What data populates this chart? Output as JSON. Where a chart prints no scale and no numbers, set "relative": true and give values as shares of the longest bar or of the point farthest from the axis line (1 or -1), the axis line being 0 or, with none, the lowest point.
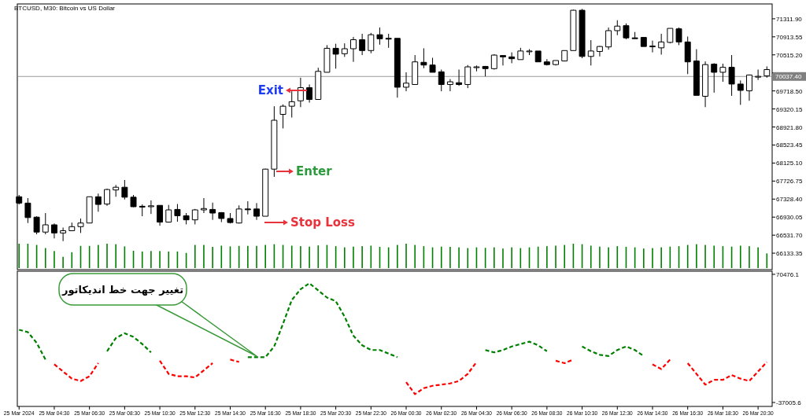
{
  "chart_data": [
    {
      "type": "candlestick",
      "title": "BTCUSD, M30: Bitcoin vs US Dollar",
      "x": [
        "2024-03-25T02:30",
        "2024-03-25T03:00",
        "2024-03-25T03:30",
        "2024-03-25T04:00",
        "2024-03-25T04:30",
        "2024-03-25T05:00",
        "2024-03-25T05:30",
        "2024-03-25T06:00",
        "2024-03-25T06:30",
        "2024-03-25T07:00",
        "2024-03-25T07:30",
        "2024-03-25T08:00",
        "2024-03-25T08:30",
        "2024-03-25T09:00",
        "2024-03-25T09:30",
        "2024-03-25T10:00",
        "2024-03-25T10:30",
        "2024-03-25T11:00",
        "2024-03-25T11:30",
        "2024-03-25T12:00",
        "2024-03-25T12:30",
        "2024-03-25T13:00",
        "2024-03-25T13:30",
        "2024-03-25T14:00",
        "2024-03-25T14:30",
        "2024-03-25T15:00",
        "2024-03-25T15:30",
        "2024-03-25T16:00",
        "2024-03-25T16:30",
        "2024-03-25T17:00",
        "2024-03-25T17:30",
        "2024-03-25T18:00",
        "2024-03-25T18:30",
        "2024-03-25T19:00",
        "2024-03-25T19:30",
        "2024-03-25T20:00",
        "2024-03-25T20:30",
        "2024-03-25T21:00",
        "2024-03-25T21:30",
        "2024-03-25T22:00",
        "2024-03-25T22:30",
        "2024-03-25T23:00",
        "2024-03-25T23:30",
        "2024-03-26T00:00",
        "2024-03-26T00:30",
        "2024-03-26T01:00",
        "2024-03-26T01:30",
        "2024-03-26T02:00",
        "2024-03-26T02:30",
        "2024-03-26T03:00",
        "2024-03-26T03:30",
        "2024-03-26T04:00",
        "2024-03-26T04:30",
        "2024-03-26T05:00",
        "2024-03-26T05:30",
        "2024-03-26T06:00",
        "2024-03-26T06:30",
        "2024-03-26T07:00",
        "2024-03-26T07:30",
        "2024-03-26T08:00",
        "2024-03-26T08:30",
        "2024-03-26T09:00",
        "2024-03-26T09:30",
        "2024-03-26T10:00",
        "2024-03-26T10:30",
        "2024-03-26T11:00",
        "2024-03-26T11:30",
        "2024-03-26T12:00",
        "2024-03-26T12:30",
        "2024-03-26T13:00",
        "2024-03-26T13:30",
        "2024-03-26T14:00",
        "2024-03-26T14:30",
        "2024-03-26T15:00",
        "2024-03-26T15:30",
        "2024-03-26T16:00",
        "2024-03-26T16:30",
        "2024-03-26T17:00",
        "2024-03-26T17:30",
        "2024-03-26T18:00",
        "2024-03-26T18:30",
        "2024-03-26T19:00",
        "2024-03-26T19:30",
        "2024-03-26T20:00",
        "2024-03-26T20:30",
        "2024-03-26T21:00"
      ],
      "ohlc": [
        [
          67380,
          67420,
          67210,
          67240
        ],
        [
          67240,
          67350,
          66800,
          66920
        ],
        [
          66930,
          66950,
          66550,
          66600
        ],
        [
          66600,
          67020,
          66550,
          66760
        ],
        [
          66760,
          66790,
          66460,
          66580
        ],
        [
          66580,
          66700,
          66400,
          66630
        ],
        [
          66630,
          66810,
          66620,
          66720
        ],
        [
          66720,
          66900,
          66580,
          66800
        ],
        [
          66800,
          67380,
          66800,
          67380
        ],
        [
          67380,
          67450,
          67050,
          67210
        ],
        [
          67220,
          67560,
          67180,
          67540
        ],
        [
          67530,
          67640,
          67380,
          67590
        ],
        [
          67590,
          67750,
          67320,
          67370
        ],
        [
          67370,
          67420,
          67150,
          67160
        ],
        [
          67170,
          67210,
          66950,
          67160
        ],
        [
          67160,
          67300,
          67000,
          67180
        ],
        [
          67190,
          67190,
          66740,
          66820
        ],
        [
          66820,
          67200,
          66810,
          67090
        ],
        [
          67100,
          67220,
          66830,
          66960
        ],
        [
          66960,
          67020,
          66770,
          66870
        ],
        [
          66870,
          67110,
          66770,
          67090
        ],
        [
          67090,
          67350,
          67020,
          67120
        ],
        [
          67100,
          67250,
          66870,
          67020
        ],
        [
          67030,
          67040,
          66820,
          66900
        ],
        [
          66900,
          67020,
          66790,
          66810
        ],
        [
          66800,
          67190,
          66790,
          67110
        ],
        [
          67110,
          67280,
          66990,
          67100
        ],
        [
          67110,
          67240,
          66870,
          66950
        ],
        [
          66950,
          68000,
          66950,
          67990
        ],
        [
          67990,
          69380,
          67820,
          69070
        ],
        [
          69200,
          69420,
          68890,
          69380
        ],
        [
          69380,
          69710,
          69130,
          69480
        ],
        [
          69500,
          70010,
          69360,
          69790
        ],
        [
          69790,
          69860,
          69460,
          69530
        ],
        [
          69530,
          70230,
          69530,
          70150
        ],
        [
          70130,
          70730,
          70130,
          70660
        ],
        [
          70660,
          70760,
          70210,
          70530
        ],
        [
          70540,
          70770,
          70470,
          70650
        ],
        [
          70650,
          70910,
          70360,
          70850
        ],
        [
          70850,
          70980,
          70510,
          70610
        ],
        [
          70610,
          71000,
          70550,
          70960
        ],
        [
          70960,
          71120,
          70740,
          70870
        ],
        [
          70880,
          70980,
          70670,
          70870
        ],
        [
          70880,
          70880,
          69570,
          69800
        ],
        [
          69800,
          70130,
          69710,
          69890
        ],
        [
          69860,
          70510,
          69860,
          70360
        ],
        [
          70350,
          70660,
          70220,
          70290
        ],
        [
          70290,
          70450,
          70130,
          70130
        ],
        [
          70140,
          70190,
          69710,
          69860
        ],
        [
          69860,
          69980,
          69710,
          69920
        ],
        [
          69900,
          70190,
          69830,
          69860
        ],
        [
          69860,
          70290,
          69780,
          70250
        ],
        [
          70250,
          70280,
          70150,
          70250
        ],
        [
          70260,
          70270,
          70040,
          70210
        ],
        [
          70210,
          70530,
          70190,
          70510
        ],
        [
          70500,
          70500,
          70280,
          70470
        ],
        [
          70470,
          70570,
          70330,
          70430
        ],
        [
          70410,
          70670,
          70410,
          70600
        ],
        [
          70600,
          70640,
          70510,
          70600
        ],
        [
          70600,
          70600,
          70360,
          70360
        ],
        [
          70360,
          70420,
          70280,
          70300
        ],
        [
          70300,
          70390,
          70280,
          70390
        ],
        [
          70380,
          70610,
          70370,
          70610
        ],
        [
          70610,
          71510,
          70610,
          71500
        ],
        [
          71500,
          71530,
          70440,
          70480
        ],
        [
          70480,
          70840,
          70280,
          70600
        ],
        [
          70590,
          70710,
          70480,
          70700
        ],
        [
          70690,
          71120,
          70630,
          71050
        ],
        [
          71050,
          71280,
          70950,
          71150
        ],
        [
          71160,
          71210,
          70860,
          70890
        ],
        [
          70890,
          71020,
          70870,
          70880
        ],
        [
          70900,
          70900,
          70700,
          70700
        ],
        [
          70710,
          70830,
          70570,
          70710
        ],
        [
          70670,
          70980,
          70520,
          70800
        ],
        [
          70790,
          71100,
          70770,
          71100
        ],
        [
          71090,
          71120,
          70730,
          70800
        ],
        [
          70800,
          70920,
          70090,
          70360
        ],
        [
          70380,
          70640,
          69620,
          69620
        ],
        [
          69600,
          70370,
          69360,
          70300
        ],
        [
          70310,
          70330,
          69680,
          70130
        ],
        [
          70130,
          70320,
          69920,
          70240
        ],
        [
          70240,
          70510,
          69610,
          69870
        ],
        [
          69870,
          69950,
          69410,
          69730
        ],
        [
          69720,
          70080,
          69500,
          70070
        ],
        [
          70040,
          70190,
          69960,
          70040
        ],
        [
          70050,
          70260,
          70010,
          70190
        ]
      ],
      "xlim": [
        "2024-03-25T02:24",
        "2024-03-26T21:18"
      ],
      "ylim": [
        65770,
        71640
      ],
      "yticks": [
        {
          "value": 71311.9,
          "label": "71311.90"
        },
        {
          "value": 70913.55,
          "label": "70913.55"
        },
        {
          "value": 70515.2,
          "label": "70515.20"
        },
        {
          "value": 70116.85,
          "label": null
        },
        {
          "value": 69718.5,
          "label": "69718.50"
        },
        {
          "value": 69320.15,
          "label": "69320.15"
        },
        {
          "value": 68921.8,
          "label": "68921.80"
        },
        {
          "value": 68523.45,
          "label": "68523.45"
        },
        {
          "value": 68125.1,
          "label": "68125.10"
        },
        {
          "value": 67726.75,
          "label": "67726.75"
        },
        {
          "value": 67328.4,
          "label": "67328.40"
        },
        {
          "value": 66930.05,
          "label": "66930.05"
        },
        {
          "value": 66531.7,
          "label": "66531.70"
        },
        {
          "value": 66133.35,
          "label": "66133.35"
        }
      ],
      "tick_labels": "y",
      "ref_lines": [
        {
          "axis": "y",
          "value": 70037.4,
          "label": "70037.40",
          "color": "#808080"
        }
      ],
      "annotations": [
        "Exit",
        "Enter",
        "Stop Loss"
      ]
    },
    {
      "type": "bar",
      "relative": true,
      "color": "#008000",
      "tick_labels": false,
      "x": [
        "2024-03-25T02:30",
        "2024-03-25T03:00",
        "2024-03-25T03:30",
        "2024-03-25T04:00",
        "2024-03-25T04:30",
        "2024-03-25T05:00",
        "2024-03-25T05:30",
        "2024-03-25T06:00",
        "2024-03-25T06:30",
        "2024-03-25T07:00",
        "2024-03-25T07:30",
        "2024-03-25T08:00",
        "2024-03-25T08:30",
        "2024-03-25T09:00",
        "2024-03-25T09:30",
        "2024-03-25T10:00",
        "2024-03-25T10:30",
        "2024-03-25T11:00",
        "2024-03-25T11:30",
        "2024-03-25T12:00",
        "2024-03-25T12:30",
        "2024-03-25T13:00",
        "2024-03-25T13:30",
        "2024-03-25T14:00",
        "2024-03-25T14:30",
        "2024-03-25T15:00",
        "2024-03-25T15:30",
        "2024-03-25T16:00",
        "2024-03-25T16:30",
        "2024-03-25T17:00",
        "2024-03-25T17:30",
        "2024-03-25T18:00",
        "2024-03-25T18:30",
        "2024-03-25T19:00",
        "2024-03-25T19:30",
        "2024-03-25T20:00",
        "2024-03-25T20:30",
        "2024-03-25T21:00",
        "2024-03-25T21:30",
        "2024-03-25T22:00",
        "2024-03-25T22:30",
        "2024-03-25T23:00",
        "2024-03-25T23:30",
        "2024-03-26T00:00",
        "2024-03-26T00:30",
        "2024-03-26T01:00",
        "2024-03-26T01:30",
        "2024-03-26T02:00",
        "2024-03-26T02:30",
        "2024-03-26T03:00",
        "2024-03-26T03:30",
        "2024-03-26T04:00",
        "2024-03-26T04:30",
        "2024-03-26T05:00",
        "2024-03-26T05:30",
        "2024-03-26T06:00",
        "2024-03-26T06:30",
        "2024-03-26T07:00",
        "2024-03-26T07:30",
        "2024-03-26T08:00",
        "2024-03-26T08:30",
        "2024-03-26T09:00",
        "2024-03-26T09:30",
        "2024-03-26T10:00",
        "2024-03-26T10:30",
        "2024-03-26T11:00",
        "2024-03-26T11:30",
        "2024-03-26T12:00",
        "2024-03-26T12:30",
        "2024-03-26T13:00",
        "2024-03-26T13:30",
        "2024-03-26T14:00",
        "2024-03-26T14:30",
        "2024-03-26T15:00",
        "2024-03-26T15:30",
        "2024-03-26T16:00",
        "2024-03-26T16:30",
        "2024-03-26T17:00",
        "2024-03-26T17:30",
        "2024-03-26T18:00",
        "2024-03-26T18:30",
        "2024-03-26T19:00",
        "2024-03-26T19:30",
        "2024-03-26T20:00",
        "2024-03-26T20:30",
        "2024-03-26T21:00"
      ],
      "values": [
        1.0,
        1.0,
        0.95,
        0.82,
        0.7,
        0.46,
        0.65,
        0.91,
        0.91,
        0.95,
        1.0,
        0.98,
        0.89,
        0.71,
        0.68,
        0.7,
        0.7,
        0.68,
        0.68,
        0.62,
        0.95,
        0.95,
        0.87,
        0.92,
        0.89,
        0.91,
        0.91,
        0.91,
        0.95,
        0.98,
        0.95,
        0.92,
        0.9,
        0.88,
        0.93,
        0.95,
        0.9,
        0.85,
        0.88,
        0.9,
        0.92,
        0.87,
        0.85,
        0.95,
        1.0,
        0.95,
        0.9,
        0.85,
        0.88,
        0.87,
        0.85,
        0.82,
        0.85,
        0.83,
        0.85,
        0.8,
        0.85,
        0.82,
        0.85,
        0.88,
        0.9,
        0.92,
        0.95,
        1.0,
        0.98,
        0.92,
        0.88,
        0.85,
        0.9,
        0.87,
        0.85,
        0.8,
        0.82,
        0.85,
        0.88,
        0.9,
        0.95,
        0.98,
        0.95,
        0.92,
        0.9,
        0.88,
        0.92,
        0.9,
        0.85,
        0.6
      ],
      "xlim": [
        "2024-03-25T02:24",
        "2024-03-26T21:18"
      ]
    },
    {
      "type": "line",
      "line_style": "dashed",
      "x": [
        "2024-03-25T02:30",
        "2024-03-25T03:00",
        "2024-03-25T03:30",
        "2024-03-25T04:00",
        "2024-03-25T04:30",
        "2024-03-25T05:00",
        "2024-03-25T05:30",
        "2024-03-25T06:00",
        "2024-03-25T06:30",
        "2024-03-25T07:00",
        "2024-03-25T07:30",
        "2024-03-25T08:00",
        "2024-03-25T08:30",
        "2024-03-25T09:00",
        "2024-03-25T09:30",
        "2024-03-25T10:00",
        "2024-03-25T10:30",
        "2024-03-25T11:00",
        "2024-03-25T11:30",
        "2024-03-25T12:00",
        "2024-03-25T12:30",
        "2024-03-25T13:00",
        "2024-03-25T13:30",
        "2024-03-25T14:00",
        "2024-03-25T14:30",
        "2024-03-25T15:00",
        "2024-03-25T15:30",
        "2024-03-25T16:00",
        "2024-03-25T16:30",
        "2024-03-25T17:00",
        "2024-03-25T17:30",
        "2024-03-25T18:00",
        "2024-03-25T18:30",
        "2024-03-25T19:00",
        "2024-03-25T19:30",
        "2024-03-25T20:00",
        "2024-03-25T20:30",
        "2024-03-25T21:00",
        "2024-03-25T21:30",
        "2024-03-25T22:00",
        "2024-03-25T22:30",
        "2024-03-25T23:00",
        "2024-03-25T23:30",
        "2024-03-26T00:00",
        "2024-03-26T00:30",
        "2024-03-26T01:00",
        "2024-03-26T01:30",
        "2024-03-26T02:00",
        "2024-03-26T02:30",
        "2024-03-26T03:00",
        "2024-03-26T03:30",
        "2024-03-26T04:00",
        "2024-03-26T04:30",
        "2024-03-26T05:00",
        "2024-03-26T05:30",
        "2024-03-26T06:00",
        "2024-03-26T06:30",
        "2024-03-26T07:00",
        "2024-03-26T07:30",
        "2024-03-26T08:00",
        "2024-03-26T08:30",
        "2024-03-26T09:00",
        "2024-03-26T09:30",
        "2024-03-26T10:00",
        "2024-03-26T10:30",
        "2024-03-26T11:00",
        "2024-03-26T11:30",
        "2024-03-26T12:00",
        "2024-03-26T12:30",
        "2024-03-26T13:00",
        "2024-03-26T13:30",
        "2024-03-26T14:00",
        "2024-03-26T14:30",
        "2024-03-26T15:00",
        "2024-03-26T15:30",
        "2024-03-26T16:00",
        "2024-03-26T16:30",
        "2024-03-26T17:00",
        "2024-03-26T17:30",
        "2024-03-26T18:00",
        "2024-03-26T18:30",
        "2024-03-26T19:00",
        "2024-03-26T19:30",
        "2024-03-26T20:00",
        "2024-03-26T20:30",
        "2024-03-26T21:00"
      ],
      "series": [
        {
          "color": "#008000",
          "values": [
            24000,
            22000,
            13000,
            -1000,
            null,
            null,
            null,
            null,
            null,
            null,
            6000,
            17000,
            21000,
            18000,
            12000,
            5000,
            null,
            null,
            null,
            null,
            null,
            null,
            null,
            null,
            null,
            null,
            1000,
            1000,
            1000,
            10000,
            29000,
            49000,
            58000,
            63000,
            57000,
            51000,
            48000,
            35000,
            19000,
            11000,
            7000,
            7000,
            4000,
            1000,
            null,
            null,
            null,
            null,
            null,
            null,
            null,
            null,
            null,
            7000,
            5000,
            7000,
            10000,
            12000,
            14000,
            11000,
            6000,
            null,
            null,
            null,
            10000,
            6000,
            3000,
            2000,
            7000,
            10000,
            7000,
            2000,
            null,
            null,
            null,
            null,
            null,
            null,
            null,
            null,
            null,
            null,
            null,
            null,
            null,
            null
          ]
        },
        {
          "color": "#ff0000",
          "values": [
            null,
            null,
            null,
            null,
            -5000,
            -11000,
            -17000,
            -19000,
            -15000,
            -4000,
            null,
            null,
            null,
            null,
            null,
            null,
            -2000,
            -13000,
            -15000,
            -15000,
            -16000,
            -10000,
            -4000,
            null,
            -1000,
            -3000,
            null,
            null,
            null,
            null,
            null,
            null,
            null,
            null,
            null,
            null,
            null,
            null,
            null,
            null,
            null,
            null,
            null,
            null,
            -20000,
            -30000,
            -25000,
            -23000,
            -22000,
            -21000,
            -19000,
            -13000,
            -3000,
            null,
            null,
            null,
            null,
            null,
            null,
            null,
            null,
            -2000,
            -4000,
            -1000,
            null,
            null,
            null,
            null,
            null,
            null,
            null,
            null,
            -5000,
            -9000,
            -1000,
            null,
            -4000,
            -13000,
            -22000,
            -18000,
            -18000,
            -14000,
            -17000,
            -19000,
            -11000,
            -3000
          ]
        }
      ],
      "xlim": [
        "2024-03-25T02:24",
        "2024-03-26T21:18"
      ],
      "ylim": [
        -40300,
        73100
      ],
      "yticks": [
        {
          "value": 70476.1,
          "label": "70476.1"
        },
        {
          "value": -37005.6,
          "label": "-37005.6"
        }
      ],
      "xticks": [
        {
          "value": "2024-03-25T02:30",
          "label": "25 Mar 2024"
        },
        {
          "value": "2024-03-25T04:30",
          "label": "25 Mar 04:30"
        },
        {
          "value": "2024-03-25T06:30",
          "label": "25 Mar 06:30"
        },
        {
          "value": "2024-03-25T08:30",
          "label": "25 Mar 08:30"
        },
        {
          "value": "2024-03-25T10:30",
          "label": "25 Mar 10:30"
        },
        {
          "value": "2024-03-25T12:30",
          "label": "25 Mar 12:30"
        },
        {
          "value": "2024-03-25T14:30",
          "label": "25 Mar 14:30"
        },
        {
          "value": "2024-03-25T16:30",
          "label": "25 Mar 16:30"
        },
        {
          "value": "2024-03-25T18:30",
          "label": "25 Mar 18:30"
        },
        {
          "value": "2024-03-25T20:30",
          "label": "25 Mar 20:30"
        },
        {
          "value": "2024-03-25T22:30",
          "label": "25 Mar 22:30"
        },
        {
          "value": "2024-03-26T00:30",
          "label": "26 Mar 00:30"
        },
        {
          "value": "2024-03-26T02:30",
          "label": "26 Mar 02:30"
        },
        {
          "value": "2024-03-26T04:30",
          "label": "26 Mar 04:30"
        },
        {
          "value": "2024-03-26T06:30",
          "label": "26 Mar 06:30"
        },
        {
          "value": "2024-03-26T08:30",
          "label": "26 Mar 08:30"
        },
        {
          "value": "2024-03-26T10:30",
          "label": "26 Mar 10:30"
        },
        {
          "value": "2024-03-26T12:30",
          "label": "26 Mar 12:30"
        },
        {
          "value": "2024-03-26T14:30",
          "label": "26 Mar 14:30"
        },
        {
          "value": "2024-03-26T16:30",
          "label": "26 Mar 16:30"
        },
        {
          "value": "2024-03-26T18:30",
          "label": "26 Mar 18:30"
        },
        {
          "value": "2024-03-26T20:30",
          "label": "26 Mar 20:30"
        }
      ],
      "annotations": [
        "تغییر جهت خط اندیکاتور"
      ]
    }
  ]
}
